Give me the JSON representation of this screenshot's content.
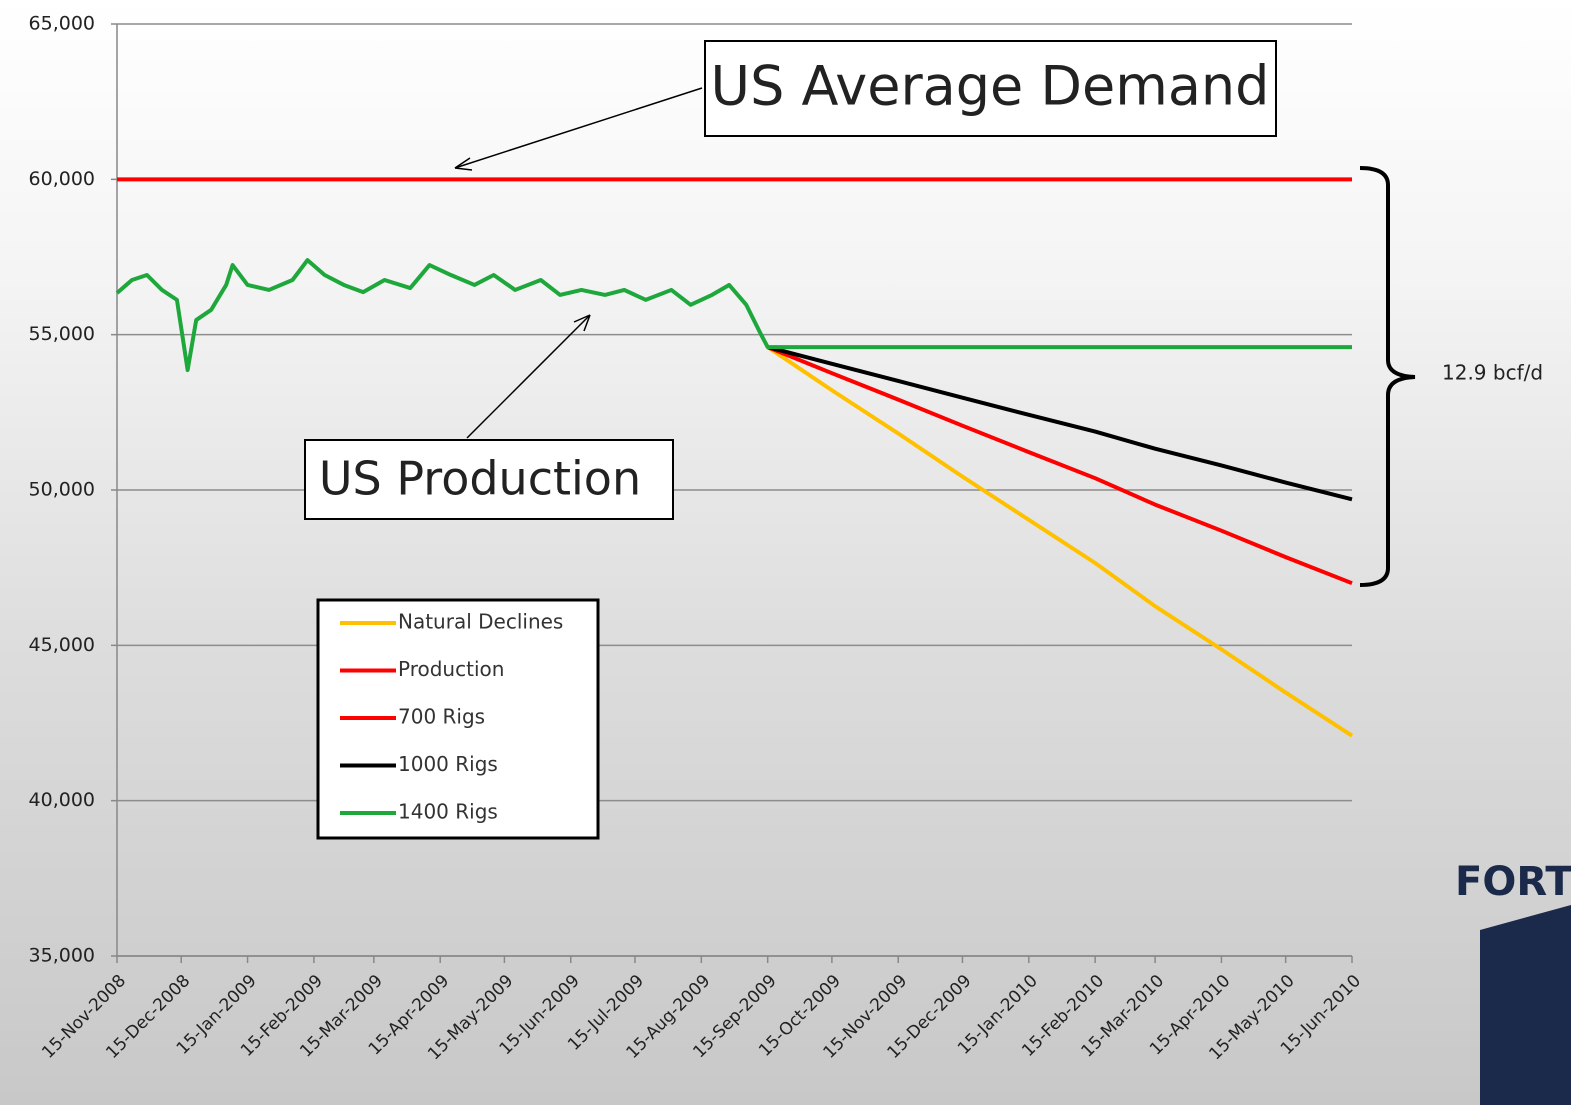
{
  "chart_data": {
    "type": "line",
    "annotations": {
      "demand": "US Average Demand",
      "production": "US Production",
      "gap": "12.9 bcf/d",
      "logo": "FORT"
    },
    "x": [
      "2008-11-15",
      "2008-11-22",
      "2008-11-29",
      "2008-12-06",
      "2008-12-13",
      "2008-12-18",
      "2008-12-22",
      "2008-12-29",
      "2009-01-05",
      "2009-01-08",
      "2009-01-15",
      "2009-01-25",
      "2009-02-05",
      "2009-02-12",
      "2009-02-20",
      "2009-03-01",
      "2009-03-10",
      "2009-03-20",
      "2009-04-01",
      "2009-04-10",
      "2009-04-20",
      "2009-05-01",
      "2009-05-10",
      "2009-05-20",
      "2009-06-01",
      "2009-06-10",
      "2009-06-20",
      "2009-07-01",
      "2009-07-10",
      "2009-07-20",
      "2009-08-01",
      "2009-08-10",
      "2009-08-20",
      "2009-08-28",
      "2009-09-05",
      "2009-09-12",
      "2009-09-15",
      "2009-10-15",
      "2009-11-15",
      "2009-12-15",
      "2010-01-15",
      "2010-02-15",
      "2010-03-15",
      "2010-04-15",
      "2010-05-15",
      "2010-06-15"
    ],
    "series": [
      {
        "name": "Natural Declines",
        "color": "#ffc000",
        "values": [
          null,
          null,
          null,
          null,
          null,
          null,
          null,
          null,
          null,
          null,
          null,
          null,
          null,
          null,
          null,
          null,
          null,
          null,
          null,
          null,
          null,
          null,
          null,
          null,
          null,
          null,
          null,
          null,
          null,
          null,
          null,
          null,
          null,
          null,
          null,
          null,
          54600,
          53210,
          51820,
          50430,
          49040,
          47650,
          46260,
          44870,
          43480,
          42090
        ]
      },
      {
        "name": "Production",
        "color": "#ff0000",
        "values": [
          60000,
          60000,
          60000,
          60000,
          60000,
          60000,
          60000,
          60000,
          60000,
          60000,
          60000,
          60000,
          60000,
          60000,
          60000,
          60000,
          60000,
          60000,
          60000,
          60000,
          60000,
          60000,
          60000,
          60000,
          60000,
          60000,
          60000,
          60000,
          60000,
          60000,
          60000,
          60000,
          60000,
          60000,
          60000,
          60000,
          60000,
          60000,
          60000,
          60000,
          60000,
          60000,
          60000,
          60000,
          60000,
          60000
        ]
      },
      {
        "name": "700 Rigs",
        "color": "#ff0000",
        "values": [
          null,
          null,
          null,
          null,
          null,
          null,
          null,
          null,
          null,
          null,
          null,
          null,
          null,
          null,
          null,
          null,
          null,
          null,
          null,
          null,
          null,
          null,
          null,
          null,
          null,
          null,
          null,
          null,
          null,
          null,
          null,
          null,
          null,
          null,
          null,
          null,
          54600,
          53760,
          52910,
          52070,
          51220,
          50380,
          49530,
          48690,
          47840,
          47000
        ]
      },
      {
        "name": "1000 Rigs",
        "color": "#000000",
        "values": [
          null,
          null,
          null,
          null,
          null,
          null,
          null,
          null,
          null,
          null,
          null,
          null,
          null,
          null,
          null,
          null,
          null,
          null,
          null,
          null,
          null,
          null,
          null,
          null,
          null,
          null,
          null,
          null,
          null,
          null,
          null,
          null,
          null,
          null,
          null,
          null,
          54600,
          54060,
          53510,
          52970,
          52420,
          51880,
          51330,
          50790,
          50240,
          49700
        ]
      },
      {
        "name": "1400 Rigs",
        "color": "#1ea83c",
        "values": [
          56340,
          56760,
          56920,
          56440,
          56120,
          53860,
          55470,
          55800,
          56600,
          57240,
          56600,
          56440,
          56760,
          57400,
          56920,
          56600,
          56370,
          56760,
          56500,
          57240,
          56920,
          56600,
          56920,
          56440,
          56760,
          56280,
          56440,
          56280,
          56440,
          56120,
          56440,
          55960,
          56280,
          56600,
          55960,
          54990,
          54600,
          54600,
          54600,
          54600,
          54600,
          54600,
          54600,
          54600,
          54600,
          54600
        ]
      }
    ],
    "xlim": [
      "2008-11-15",
      "2010-06-15"
    ],
    "xticks": [
      {
        "value": "2008-11-15",
        "label": "15-Nov-2008"
      },
      {
        "value": "2008-12-15",
        "label": "15-Dec-2008"
      },
      {
        "value": "2009-01-15",
        "label": "15-Jan-2009"
      },
      {
        "value": "2009-02-15",
        "label": "15-Feb-2009"
      },
      {
        "value": "2009-03-15",
        "label": "15-Mar-2009"
      },
      {
        "value": "2009-04-15",
        "label": "15-Apr-2009"
      },
      {
        "value": "2009-05-15",
        "label": "15-May-2009"
      },
      {
        "value": "2009-06-15",
        "label": "15-Jun-2009"
      },
      {
        "value": "2009-07-15",
        "label": "15-Jul-2009"
      },
      {
        "value": "2009-08-15",
        "label": "15-Aug-2009"
      },
      {
        "value": "2009-09-15",
        "label": "15-Sep-2009"
      },
      {
        "value": "2009-10-15",
        "label": "15-Oct-2009"
      },
      {
        "value": "2009-11-15",
        "label": "15-Nov-2009"
      },
      {
        "value": "2009-12-15",
        "label": "15-Dec-2009"
      },
      {
        "value": "2010-01-15",
        "label": "15-Jan-2010"
      },
      {
        "value": "2010-02-15",
        "label": "15-Feb-2010"
      },
      {
        "value": "2010-03-15",
        "label": "15-Mar-2010"
      },
      {
        "value": "2010-04-15",
        "label": "15-Apr-2010"
      },
      {
        "value": "2010-05-15",
        "label": "15-May-2010"
      },
      {
        "value": "2010-06-15",
        "label": "15-Jun-2010"
      }
    ],
    "ylim": [
      35000,
      65000
    ],
    "yticks": [
      {
        "value": 35000,
        "label": "35,000"
      },
      {
        "value": 40000,
        "label": "40,000"
      },
      {
        "value": 45000,
        "label": "45,000"
      },
      {
        "value": 50000,
        "label": "50,000"
      },
      {
        "value": 55000,
        "label": "55,000"
      },
      {
        "value": 60000,
        "label": "60,000"
      },
      {
        "value": 65000,
        "label": "65,000"
      }
    ],
    "grid": true,
    "legend": "lower left"
  }
}
